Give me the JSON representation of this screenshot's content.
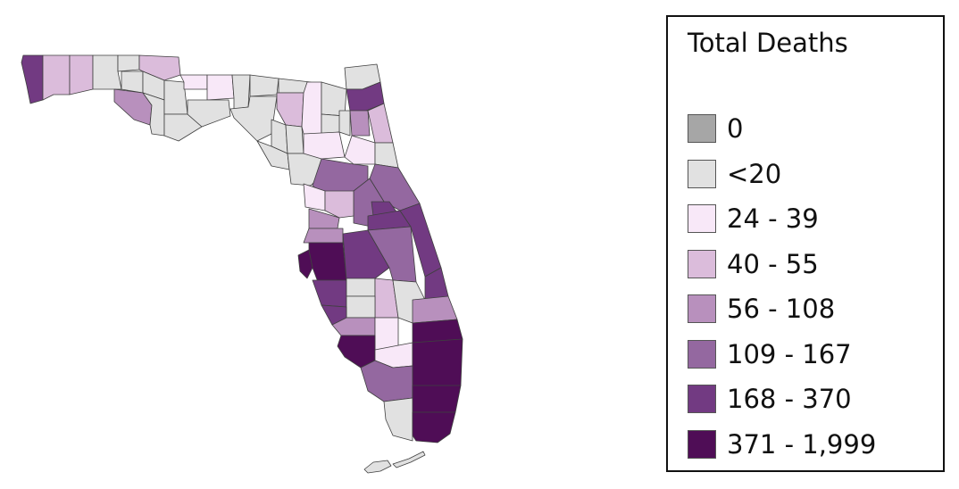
{
  "legend": {
    "title": "Total Deaths",
    "classes": [
      {
        "label": "0",
        "color": "#a6a6a6"
      },
      {
        "label": "<20",
        "color": "#e1e1e1"
      },
      {
        "label": "24 - 39",
        "color": "#f8e8f8"
      },
      {
        "label": "40 - 55",
        "color": "#dbbcdb"
      },
      {
        "label": "56 - 108",
        "color": "#b890bd"
      },
      {
        "label": "109 - 167",
        "color": "#9468a0"
      },
      {
        "label": "168 - 370",
        "color": "#723a82"
      },
      {
        "label": "371 - 1,999",
        "color": "#4f0d56"
      }
    ]
  },
  "map": {
    "region": "Florida",
    "units": "counties"
  }
}
